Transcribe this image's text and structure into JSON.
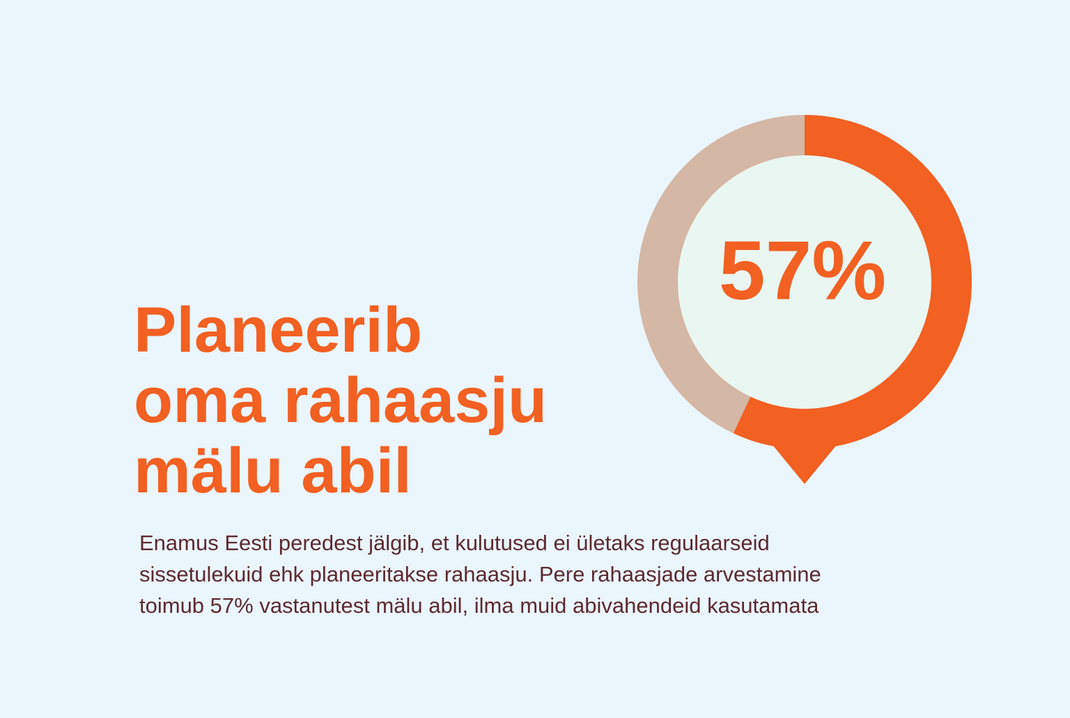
{
  "chart_data": {
    "type": "donut",
    "title_lines": [
      "Planeerib",
      "oma rahaasju",
      "mälu abil"
    ],
    "text_lines": [
      "Enamus Eesti peredest jälgib, et kulutused ei ületaks regulaarseid",
      "sissetulekuid ehk planeeritakse rahaasju. Pere rahaasjade arvestamine",
      "toimub 57% vastanutest mälu abil, ilma muid abivahendeid kasutamata"
    ],
    "values": [
      57
    ],
    "value_labels": [
      "57%"
    ],
    "color": "#f26022"
  }
}
